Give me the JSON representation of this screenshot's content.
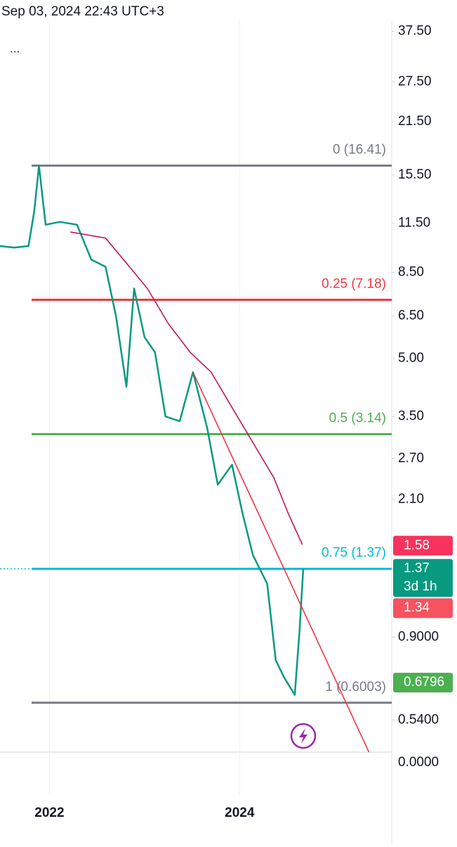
{
  "header": {
    "timestamp": "Sep 03, 2024 22:43 UTC+3",
    "menu": "..."
  },
  "chart_data": {
    "type": "line",
    "log": true,
    "xlim": [
      2021.48,
      2025.6
    ],
    "xticks": [
      2022,
      2024
    ],
    "ylim": [
      0.443,
      39.1
    ],
    "yticks": [
      {
        "value": 37.5,
        "label": "37.50"
      },
      {
        "value": 27.5,
        "label": "27.50"
      },
      {
        "value": 21.5,
        "label": "21.50"
      },
      {
        "value": 15.5,
        "label": "15.50"
      },
      {
        "value": 11.5,
        "label": "11.50"
      },
      {
        "value": 8.5,
        "label": "8.50"
      },
      {
        "value": 6.5,
        "label": "6.50"
      },
      {
        "value": 5,
        "label": "5.00"
      },
      {
        "value": 3.5,
        "label": "3.50"
      },
      {
        "value": 2.7,
        "label": "2.70"
      },
      {
        "value": 2.1,
        "label": "2.10"
      },
      {
        "value": 0.9,
        "label": "0.9000"
      },
      {
        "value": 0.54,
        "label": "0.5400"
      }
    ],
    "bottom_label": "0.0000",
    "series": [
      {
        "color": "#089981",
        "x": [
          2021.48,
          2021.63,
          2021.78,
          2021.84,
          2021.89,
          2021.96,
          2022.11,
          2022.29,
          2022.44,
          2022.59,
          2022.7,
          2022.81,
          2022.89,
          2023.0,
          2023.11,
          2023.22,
          2023.37,
          2023.51,
          2023.66,
          2023.77,
          2023.92,
          2024.03,
          2024.14,
          2024.29,
          2024.38,
          2024.47,
          2024.58,
          2024.63,
          2024.67
        ],
        "values": [
          10.0,
          9.9,
          10.0,
          12.4,
          16.4,
          11.4,
          11.6,
          11.4,
          9.2,
          8.8,
          6.5,
          4.2,
          7.7,
          5.7,
          5.2,
          3.5,
          3.4,
          4.6,
          3.25,
          2.3,
          2.6,
          1.93,
          1.49,
          1.25,
          0.78,
          0.7,
          0.63,
          0.93,
          1.37
        ]
      },
      {
        "color": "#c2185b",
        "x": [
          2022.22,
          2022.59,
          2022.81,
          2023.03,
          2023.25,
          2023.48,
          2023.7,
          2023.92,
          2024.14,
          2024.36,
          2024.51,
          2024.66
        ],
        "values": [
          10.9,
          10.5,
          9.0,
          7.7,
          6.2,
          5.2,
          4.6,
          3.7,
          2.98,
          2.4,
          1.93,
          1.59
        ]
      },
      {
        "color": "#f23645",
        "x": [
          2023.51,
          2025.36
        ],
        "values": [
          4.6,
          0.443
        ]
      }
    ],
    "fib_levels": [
      {
        "label": "0 (16.41)",
        "value": 16.41,
        "color": "#787b86"
      },
      {
        "label": "0.25 (7.18)",
        "value": 7.18,
        "color": "#f23645"
      },
      {
        "label": "0.5 (3.14)",
        "value": 3.14,
        "color": "#4caf50"
      },
      {
        "label": "0.75 (1.37)",
        "value": 1.37,
        "color": "#00bcd4"
      },
      {
        "label": "1 (0.6003)",
        "value": 0.6003,
        "color": "#787b86"
      }
    ],
    "price_tags": [
      {
        "value": 1.58,
        "label": "1.58",
        "color": "#f7325d"
      },
      {
        "value": 1.37,
        "label": "1.37",
        "color": "#089981",
        "countdown": "3d 1h"
      },
      {
        "value": 1.34,
        "label": "1.34",
        "color": "#f7525f"
      },
      {
        "value": 0.6796,
        "label": "0.6796",
        "color": "#4caf50"
      }
    ]
  }
}
